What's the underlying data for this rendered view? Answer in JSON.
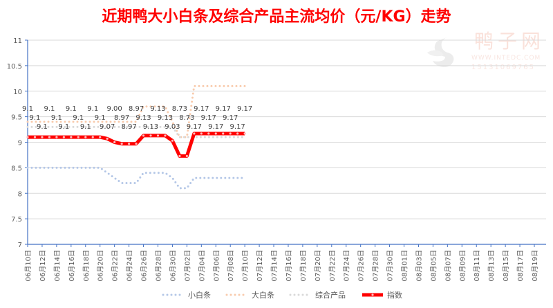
{
  "chart_data": {
    "type": "line",
    "title": "近期鸭大小白条及综合产品主流均价（元/KG）走势",
    "xlabel": "",
    "ylabel": "",
    "ylim": [
      7,
      11
    ],
    "yticks": [
      "11",
      "10.5",
      "10",
      "9.5",
      "9",
      "8.5",
      "8",
      "7.5",
      "7"
    ],
    "grid": true,
    "legend": "bottom",
    "x_tick_labels": [
      "06月10日",
      "06月12日",
      "06月14日",
      "06月16日",
      "06月18日",
      "06月20日",
      "06月22日",
      "06月24日",
      "06月26日",
      "06月28日",
      "06月30日",
      "07月02日",
      "07月04日",
      "07月06日",
      "07月08日",
      "07月10日",
      "07月12日",
      "07月14日",
      "07月16日",
      "07月18日",
      "07月20日",
      "07月22日",
      "07月24日",
      "07月26日",
      "07月28日",
      "07月30日",
      "08月01日",
      "08月03日",
      "08月05日",
      "08月07日",
      "08月09日",
      "08月11日",
      "08月13日",
      "08月15日",
      "08月17日",
      "08月19日"
    ],
    "x_range": [
      "06-10",
      "08-19"
    ],
    "x": [
      "06-10",
      "06-11",
      "06-12",
      "06-13",
      "06-14",
      "06-15",
      "06-16",
      "06-17",
      "06-18",
      "06-19",
      "06-20",
      "06-21",
      "06-22",
      "06-23",
      "06-24",
      "06-25",
      "06-26",
      "06-27",
      "06-28",
      "06-29",
      "06-30",
      "07-01",
      "07-02",
      "07-03",
      "07-04",
      "07-05",
      "07-06",
      "07-07",
      "07-08",
      "07-09",
      "07-10"
    ],
    "series": [
      {
        "name": "小白条",
        "color": "#b4c7e7",
        "style": "dotted",
        "values": [
          8.5,
          8.5,
          8.5,
          8.5,
          8.5,
          8.5,
          8.5,
          8.5,
          8.5,
          8.5,
          8.5,
          8.4,
          8.3,
          8.2,
          8.2,
          8.2,
          8.4,
          8.4,
          8.4,
          8.4,
          8.3,
          8.1,
          8.1,
          8.3,
          8.3,
          8.3,
          8.3,
          8.3,
          8.3,
          8.3,
          8.3
        ]
      },
      {
        "name": "大白条",
        "color": "#f8cbad",
        "style": "dotted",
        "values": [
          9.4,
          9.4,
          9.4,
          9.4,
          9.4,
          9.4,
          9.4,
          9.4,
          9.4,
          9.4,
          9.4,
          9.4,
          9.4,
          9.4,
          9.4,
          9.4,
          9.7,
          9.7,
          9.7,
          9.7,
          9.4,
          9.1,
          9.1,
          10.1,
          10.1,
          10.1,
          10.1,
          10.1,
          10.1,
          10.1,
          10.1
        ]
      },
      {
        "name": "综合产品",
        "color": "#d9d9d9",
        "style": "dotted",
        "values": [
          9.3,
          9.3,
          9.3,
          9.3,
          9.3,
          9.3,
          9.3,
          9.3,
          9.3,
          9.3,
          9.3,
          9.3,
          9.3,
          9.3,
          9.3,
          9.3,
          9.3,
          9.3,
          9.3,
          9.3,
          9.3,
          9.1,
          9.1,
          9.1,
          9.1,
          9.1,
          9.1,
          9.1,
          9.1,
          9.1,
          9.1
        ]
      },
      {
        "name": "指数",
        "color": "#ff0000",
        "style": "solid-marker",
        "values": [
          9.1,
          9.1,
          9.1,
          9.1,
          9.1,
          9.1,
          9.1,
          9.1,
          9.1,
          9.1,
          9.1,
          9.07,
          9.0,
          8.97,
          8.97,
          8.97,
          9.13,
          9.13,
          9.13,
          9.13,
          9.03,
          8.73,
          8.73,
          9.17,
          9.17,
          9.17,
          9.17,
          9.17,
          9.17,
          9.17,
          9.17
        ],
        "labels": [
          "9.1",
          "9.1",
          "9.1",
          "9.1",
          "9.1",
          "9.1",
          "9.1",
          "9.1",
          "9.1",
          "9.1",
          "9.1",
          "9.07",
          "9.00",
          "8.97",
          "8.97",
          "8.97",
          "9.13",
          "9.13",
          "9.13",
          "9.13",
          "9.03",
          "8.73",
          "8.73",
          "9.17",
          "9.17",
          "9.17",
          "9.17",
          "9.17",
          "9.17",
          "9.17",
          "9.17"
        ]
      }
    ]
  },
  "watermark": {
    "name": "鸭子网",
    "url": "WWW.INTEDC.COM",
    "phone": "15131069765"
  }
}
